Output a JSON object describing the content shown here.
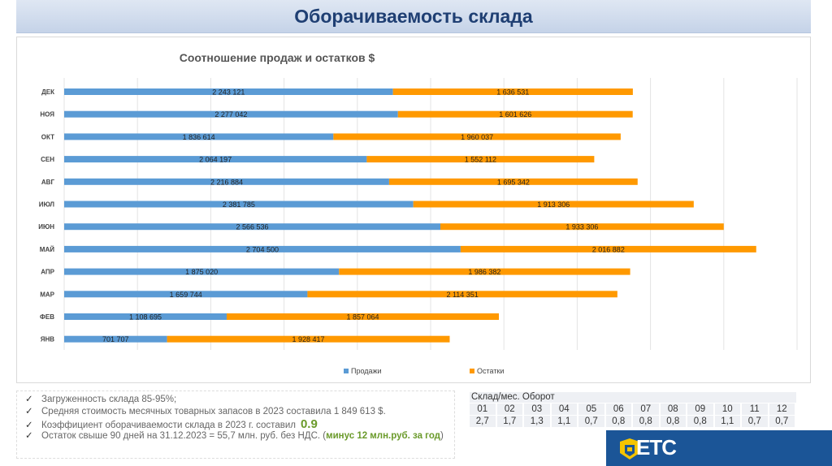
{
  "header": {
    "title": "Оборачиваемость склада"
  },
  "chart_data": {
    "type": "bar",
    "stacked": true,
    "orientation": "horizontal",
    "title": "Соотношение продаж и остатков $",
    "categories": [
      "ДЕК",
      "НОЯ",
      "ОКТ",
      "СЕН",
      "АВГ",
      "ИЮЛ",
      "ИЮН",
      "МАЙ",
      "АПР",
      "МАР",
      "ФЕВ",
      "ЯНВ"
    ],
    "series": [
      {
        "name": "Продажи",
        "color": "#5b9bd5",
        "values": [
          2243121,
          2277042,
          1836614,
          2064197,
          2216884,
          2381785,
          2566536,
          2704500,
          1875020,
          1659744,
          1108695,
          701707
        ],
        "labels": [
          "2 243 121",
          "2 277 042",
          "1 836 614",
          "2 064 197",
          "2 216 884",
          "2 381 785",
          "2 566 536",
          "2 704 500",
          "1 875 020",
          "1 659 744",
          "1 108 695",
          "701 707"
        ]
      },
      {
        "name": "Остатки",
        "color": "#ff9900",
        "values": [
          1636531,
          1601626,
          1960037,
          1552112,
          1695342,
          1913306,
          1933306,
          2016882,
          1986382,
          2114351,
          1857064,
          1928417
        ],
        "labels": [
          "1 636 531",
          "1 601 626",
          "1 960 037",
          "1 552 112",
          "1 695 342",
          "1 913 306",
          "1 933 306",
          "2 016 882",
          "1 986 382",
          "2 114 351",
          "1 857 064",
          "1 928 417"
        ]
      }
    ],
    "xlim": [
      0,
      5000000
    ],
    "grid": true,
    "legend": "bottom"
  },
  "notes": {
    "items": [
      "Загруженность склада 85-95%;",
      "Средняя стоимость месячных товарных запасов в 2023 составила 1 849 613 $.",
      "Коэффициент оборачиваемости склада в 2023 г. составил",
      "Остаток свыше 90 дней на 31.12.2023   = 55,7 млн. руб. без НДС. ("
    ],
    "ratio": "0.9",
    "minus": "минус 12 млн.руб. за год",
    "close": ")",
    "check": "✓"
  },
  "table": {
    "caption": "Склад/мес. Оборот",
    "months": [
      "01",
      "02",
      "03",
      "04",
      "05",
      "06",
      "07",
      "08",
      "09",
      "10",
      "11",
      "12"
    ],
    "values": [
      "2,7",
      "1,7",
      "1,3",
      "1,1",
      "0,7",
      "0,8",
      "0,8",
      "0,8",
      "0,8",
      "1,1",
      "0,7",
      "0,7"
    ]
  },
  "logo": {
    "text": "ETC"
  }
}
